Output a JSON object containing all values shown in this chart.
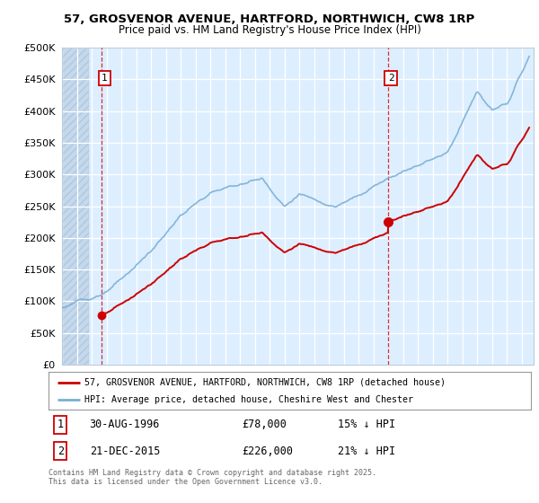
{
  "title1": "57, GROSVENOR AVENUE, HARTFORD, NORTHWICH, CW8 1RP",
  "title2": "Price paid vs. HM Land Registry's House Price Index (HPI)",
  "ylim": [
    0,
    500000
  ],
  "yticks": [
    0,
    50000,
    100000,
    150000,
    200000,
    250000,
    300000,
    350000,
    400000,
    450000,
    500000
  ],
  "legend_entry1": "57, GROSVENOR AVENUE, HARTFORD, NORTHWICH, CW8 1RP (detached house)",
  "legend_entry2": "HPI: Average price, detached house, Cheshire West and Chester",
  "annotation1_label": "1",
  "annotation1_date": "30-AUG-1996",
  "annotation1_price": "£78,000",
  "annotation1_hpi": "15% ↓ HPI",
  "annotation1_year": 1996.67,
  "annotation1_value": 78000,
  "annotation2_label": "2",
  "annotation2_date": "21-DEC-2015",
  "annotation2_price": "£226,000",
  "annotation2_hpi": "21% ↓ HPI",
  "annotation2_year": 2015.97,
  "annotation2_value": 226000,
  "footer": "Contains HM Land Registry data © Crown copyright and database right 2025.\nThis data is licensed under the Open Government Licence v3.0.",
  "hpi_color": "#7bafd4",
  "price_color": "#cc0000",
  "vline_color": "#cc0000",
  "bg_color": "#ddeeff",
  "hatch_color": "#c5d8ec"
}
